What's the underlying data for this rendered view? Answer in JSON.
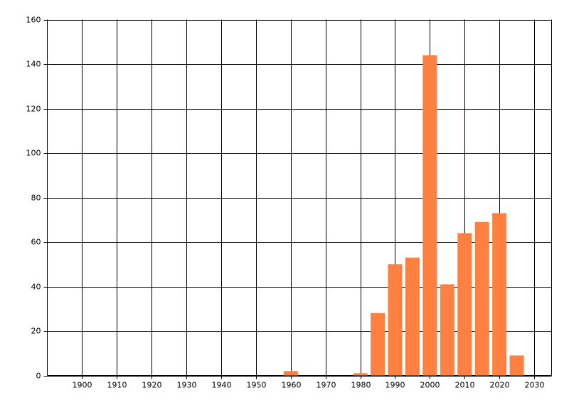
{
  "chart_data": {
    "type": "bar",
    "x": [
      1960,
      1980,
      1985,
      1990,
      1995,
      2000,
      2005,
      2010,
      2015,
      2020,
      2025
    ],
    "values": [
      2,
      1,
      28,
      50,
      53,
      144,
      41,
      64,
      69,
      73,
      9
    ],
    "color": "#ff8040",
    "xlim": [
      1890,
      2035
    ],
    "xticks": [
      1900,
      1910,
      1920,
      1930,
      1940,
      1950,
      1960,
      1970,
      1980,
      1990,
      2000,
      2010,
      2020,
      2030
    ],
    "ylim": [
      0,
      160
    ],
    "yticks": [
      0,
      20,
      40,
      60,
      80,
      100,
      120,
      140,
      160
    ],
    "grid": true
  }
}
